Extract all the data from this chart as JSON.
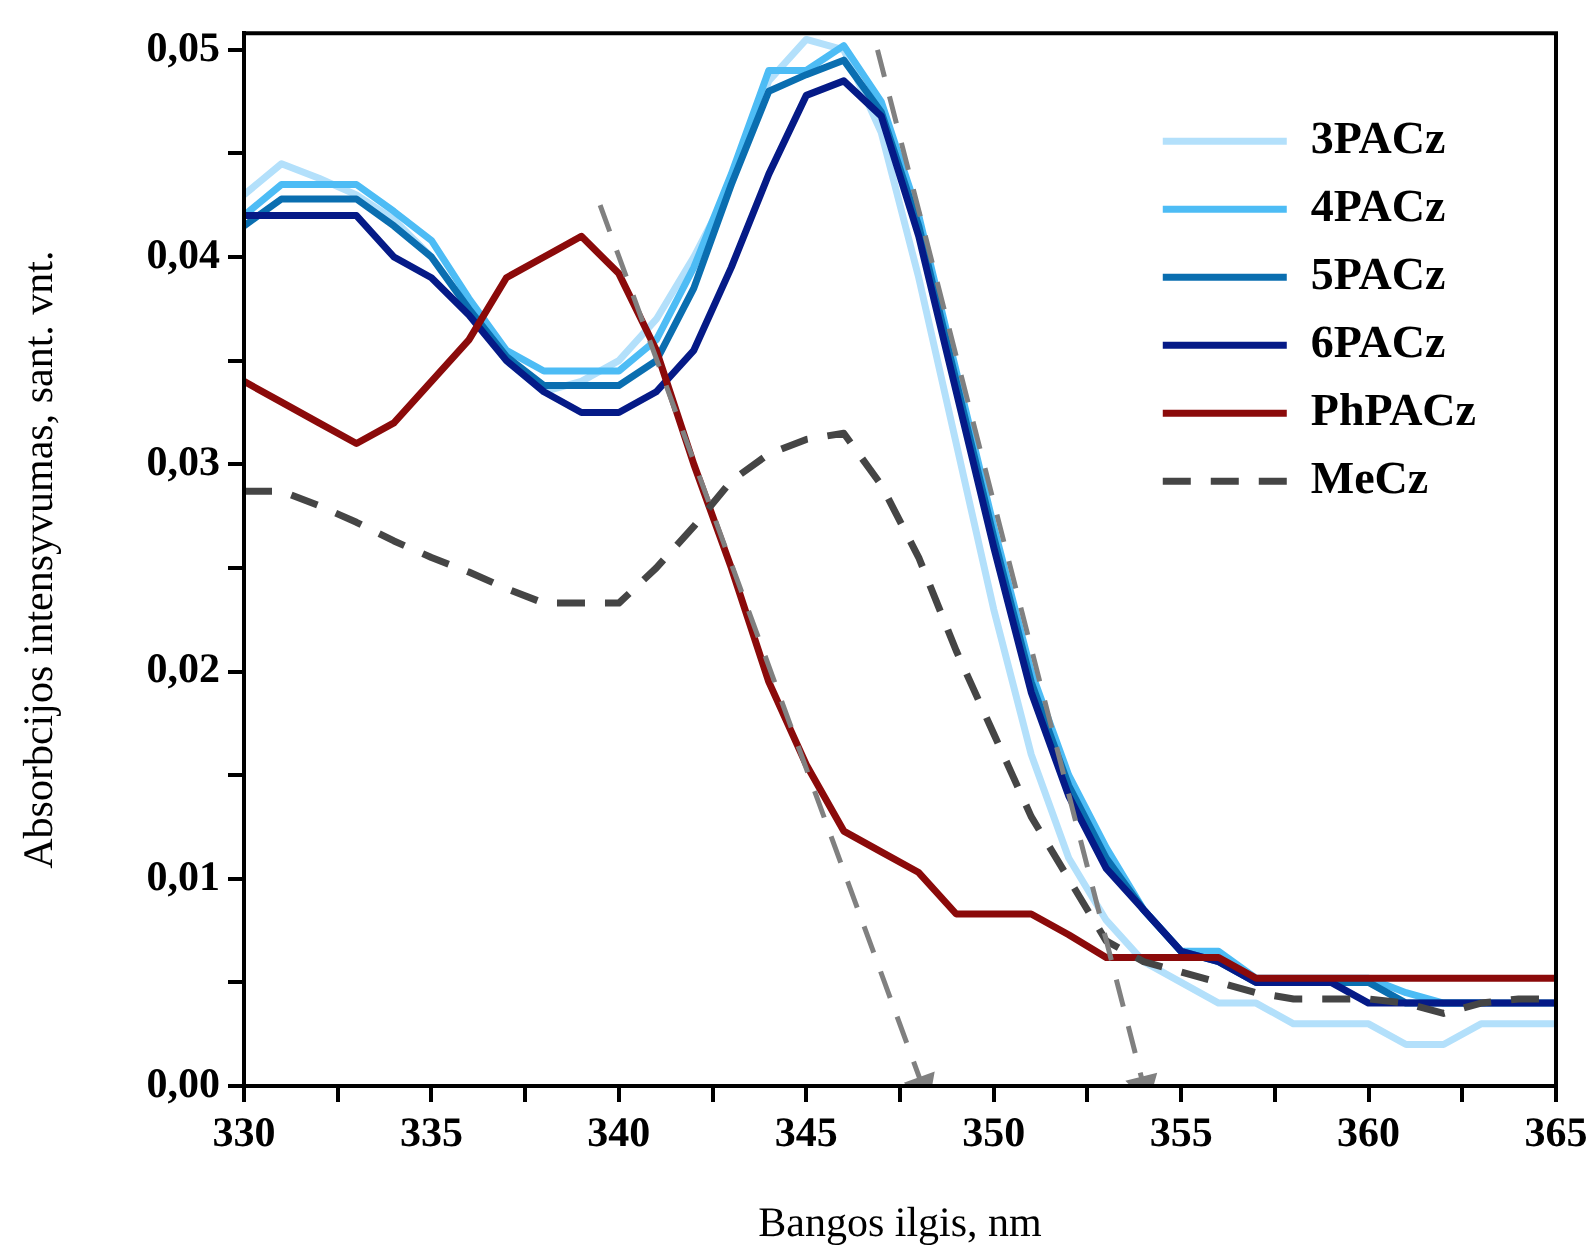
{
  "chart_data": {
    "type": "line",
    "xlabel": "Bangos ilgis, nm",
    "ylabel": "Absorbcijos intensyvumas, sant. vnt.",
    "x": [
      330,
      331,
      332,
      333,
      334,
      335,
      336,
      337,
      338,
      339,
      340,
      341,
      342,
      343,
      344,
      345,
      346,
      347,
      348,
      349,
      350,
      351,
      352,
      353,
      354,
      355,
      356,
      357,
      358,
      359,
      360,
      361,
      362,
      363,
      364,
      365
    ],
    "xlim": [
      330,
      365
    ],
    "ylim": [
      0,
      0.0508
    ],
    "xticks": [
      {
        "value": 330,
        "label": "330"
      },
      {
        "value": 332.5,
        "label": null
      },
      {
        "value": 335,
        "label": "335"
      },
      {
        "value": 337.5,
        "label": null
      },
      {
        "value": 340,
        "label": "340"
      },
      {
        "value": 342.5,
        "label": null
      },
      {
        "value": 345,
        "label": "345"
      },
      {
        "value": 347.5,
        "label": null
      },
      {
        "value": 350,
        "label": "350"
      },
      {
        "value": 352.5,
        "label": null
      },
      {
        "value": 355,
        "label": "355"
      },
      {
        "value": 357.5,
        "label": null
      },
      {
        "value": 360,
        "label": "360"
      },
      {
        "value": 362.5,
        "label": null
      },
      {
        "value": 365,
        "label": "365"
      }
    ],
    "yticks": [
      {
        "value": 0,
        "label": "0,00"
      },
      {
        "value": 0.005,
        "label": null
      },
      {
        "value": 0.01,
        "label": "0,01"
      },
      {
        "value": 0.015,
        "label": null
      },
      {
        "value": 0.02,
        "label": "0,02"
      },
      {
        "value": 0.025,
        "label": null
      },
      {
        "value": 0.03,
        "label": "0,03"
      },
      {
        "value": 0.035,
        "label": null
      },
      {
        "value": 0.04,
        "label": "0,04"
      },
      {
        "value": 0.045,
        "label": null
      },
      {
        "value": 0.05,
        "label": "0,05"
      }
    ],
    "grid": false,
    "legend": "top right",
    "marker": "none",
    "series": [
      {
        "name": "3PACz",
        "color": "#b3e0fb",
        "values": [
          0.043,
          0.0445,
          0.0438,
          0.043,
          0.0418,
          0.04,
          0.0375,
          0.035,
          0.0335,
          0.034,
          0.035,
          0.037,
          0.04,
          0.0435,
          0.0485,
          0.0505,
          0.05,
          0.046,
          0.039,
          0.031,
          0.023,
          0.016,
          0.011,
          0.008,
          0.006,
          0.005,
          0.004,
          0.004,
          0.003,
          0.003,
          0.003,
          0.002,
          0.002,
          0.003,
          0.003,
          0.003
        ]
      },
      {
        "name": "4PACz",
        "color": "#4dbcf5",
        "values": [
          0.042,
          0.0435,
          0.0435,
          0.0435,
          0.0422,
          0.0408,
          0.038,
          0.0355,
          0.0345,
          0.0345,
          0.0345,
          0.036,
          0.0395,
          0.044,
          0.049,
          0.049,
          0.0502,
          0.0475,
          0.042,
          0.0345,
          0.027,
          0.02,
          0.015,
          0.0115,
          0.0085,
          0.0065,
          0.0065,
          0.0052,
          0.0052,
          0.0052,
          0.0052,
          0.0045,
          0.004,
          0.004,
          null,
          null
        ]
      },
      {
        "name": "5PACz",
        "color": "#0a6eb0",
        "values": [
          0.0415,
          0.0428,
          0.0428,
          0.0428,
          0.0415,
          0.04,
          0.0375,
          0.0352,
          0.0338,
          0.0338,
          0.0338,
          0.035,
          0.0385,
          0.0435,
          0.048,
          0.0488,
          0.0495,
          0.047,
          0.0415,
          0.034,
          0.0265,
          0.0195,
          0.0145,
          0.011,
          0.0085,
          0.0065,
          0.006,
          0.005,
          0.005,
          0.005,
          0.005,
          0.004,
          0.004,
          0.004,
          0.004,
          0.004
        ]
      },
      {
        "name": "6PACz",
        "color": "#051a87",
        "values": [
          0.042,
          0.042,
          0.042,
          0.042,
          0.04,
          0.039,
          0.0372,
          0.035,
          0.0335,
          0.0325,
          0.0325,
          0.0335,
          0.0355,
          0.0395,
          0.044,
          0.0478,
          0.0485,
          0.0468,
          0.041,
          0.0335,
          0.026,
          0.019,
          0.014,
          0.0105,
          0.0085,
          0.0065,
          0.006,
          0.005,
          0.005,
          0.005,
          0.004,
          0.004,
          0.004,
          0.004,
          0.004,
          0.004
        ]
      },
      {
        "name": "PhPACz",
        "color": "#8b0a0a",
        "values": [
          0.034,
          0.033,
          0.032,
          0.031,
          0.032,
          0.034,
          0.036,
          0.039,
          0.04,
          0.041,
          0.0392,
          0.0355,
          0.03,
          0.025,
          0.0195,
          0.0155,
          0.0123,
          0.0113,
          0.0103,
          0.0083,
          0.0083,
          0.0083,
          0.0073,
          0.0062,
          0.0062,
          0.0062,
          0.0062,
          0.0052,
          0.0052,
          0.0052,
          0.0052,
          0.0052,
          0.0052,
          0.0052,
          0.0052,
          0.0052
        ]
      },
      {
        "name": "MeCz",
        "color": "#454545",
        "line_style": "dashed",
        "values": [
          0.0287,
          0.0287,
          0.028,
          0.0272,
          0.0263,
          0.0255,
          0.0248,
          0.024,
          0.0233,
          0.0233,
          0.0233,
          0.025,
          0.027,
          0.0292,
          0.0305,
          0.0312,
          0.0315,
          0.029,
          0.0255,
          0.021,
          0.017,
          0.013,
          0.01,
          0.007,
          0.006,
          0.0055,
          0.005,
          0.0045,
          0.0042,
          0.0042,
          0.0042,
          0.004,
          0.0035,
          0.004,
          0.0042,
          0.0042
        ]
      },
      {
        "type": "line",
        "color": "#808080",
        "line_style": "dashed",
        "marker": "triangle",
        "x": [
          339.5,
          348.1
        ],
        "values": [
          0.0425,
          0
        ]
      },
      {
        "type": "line",
        "color": "#808080",
        "line_style": "dashed",
        "marker": "triangle",
        "x": [
          346.9,
          354.0
        ],
        "values": [
          0.05,
          0
        ]
      }
    ]
  }
}
